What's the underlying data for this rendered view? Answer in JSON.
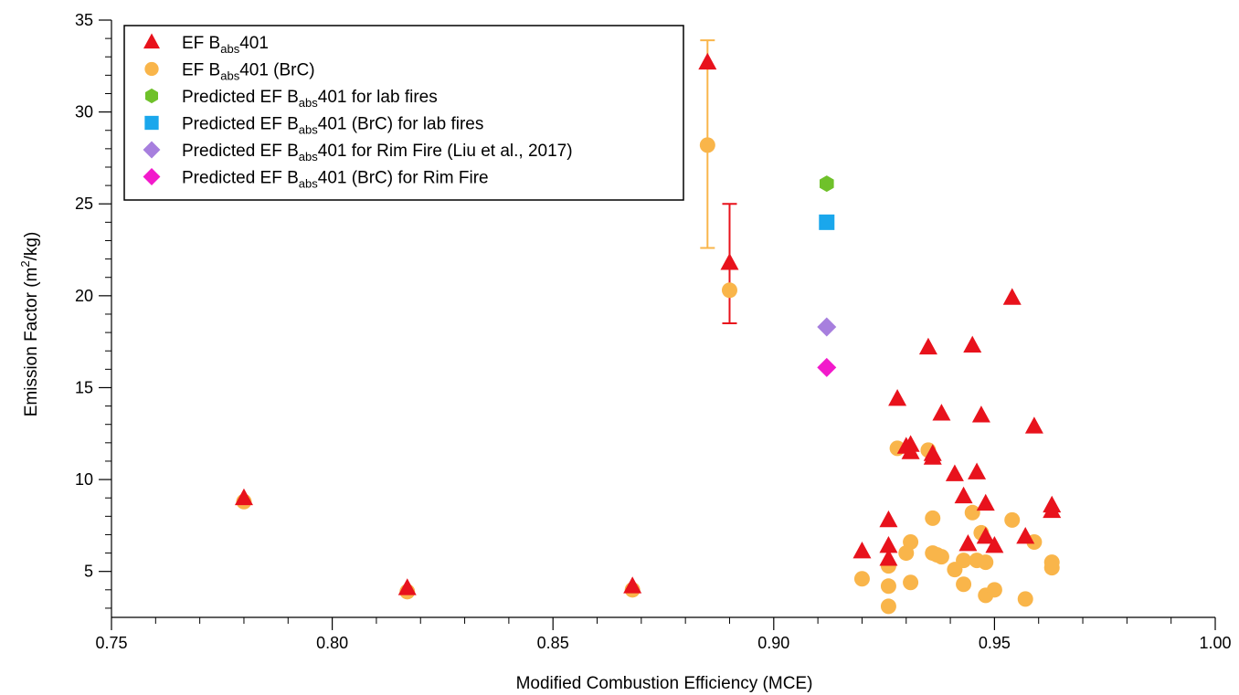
{
  "chart_data": {
    "type": "scatter",
    "xlabel": "Modified Combustion Efficiency (MCE)",
    "ylabel": "Emission Factor (m2/kg)",
    "ylabel_parts": {
      "pre": "Emission Factor (m",
      "sup": "2",
      "post": "/kg)"
    },
    "xlim": [
      0.75,
      1.0
    ],
    "ylim": [
      2.5,
      35
    ],
    "x_ticks": [
      "0.75",
      "0.80",
      "0.85",
      "0.90",
      "0.95",
      "1.00"
    ],
    "y_ticks": [
      "5",
      "10",
      "15",
      "20",
      "25",
      "30",
      "35"
    ],
    "grid": false,
    "legend_position": "top-left",
    "series": [
      {
        "name": "EF Babs401",
        "name_parts": {
          "pre": "EF B",
          "sub": "abs",
          "post": "401"
        },
        "marker": "triangle",
        "color": "#e8121c",
        "points": [
          [
            0.78,
            9.0
          ],
          [
            0.817,
            4.1
          ],
          [
            0.868,
            4.2
          ],
          [
            0.885,
            32.7
          ],
          [
            0.89,
            21.8
          ],
          [
            0.92,
            6.1
          ],
          [
            0.926,
            7.8
          ],
          [
            0.926,
            6.4
          ],
          [
            0.926,
            5.7
          ],
          [
            0.928,
            14.4
          ],
          [
            0.93,
            11.8
          ],
          [
            0.931,
            11.9
          ],
          [
            0.931,
            11.5
          ],
          [
            0.935,
            17.2
          ],
          [
            0.936,
            11.2
          ],
          [
            0.936,
            11.4
          ],
          [
            0.938,
            13.6
          ],
          [
            0.941,
            10.3
          ],
          [
            0.943,
            9.1
          ],
          [
            0.944,
            6.5
          ],
          [
            0.945,
            17.3
          ],
          [
            0.946,
            10.4
          ],
          [
            0.947,
            13.5
          ],
          [
            0.948,
            8.7
          ],
          [
            0.948,
            6.9
          ],
          [
            0.95,
            6.4
          ],
          [
            0.954,
            19.9
          ],
          [
            0.957,
            6.9
          ],
          [
            0.959,
            12.9
          ],
          [
            0.963,
            8.6
          ],
          [
            0.963,
            8.3
          ]
        ],
        "error_bars": [
          {
            "x": 0.89,
            "low": 18.5,
            "high": 25.0
          }
        ]
      },
      {
        "name": "EF Babs401 (BrC)",
        "name_parts": {
          "pre": "EF B",
          "sub": "abs",
          "post": "401 (BrC)"
        },
        "marker": "circle",
        "color": "#f9b54a",
        "points": [
          [
            0.78,
            8.8
          ],
          [
            0.817,
            3.9
          ],
          [
            0.868,
            4.0
          ],
          [
            0.885,
            28.2
          ],
          [
            0.89,
            20.3
          ],
          [
            0.92,
            4.6
          ],
          [
            0.926,
            3.1
          ],
          [
            0.926,
            4.2
          ],
          [
            0.926,
            5.3
          ],
          [
            0.928,
            11.7
          ],
          [
            0.93,
            6.0
          ],
          [
            0.931,
            6.6
          ],
          [
            0.931,
            4.4
          ],
          [
            0.935,
            11.6
          ],
          [
            0.936,
            7.9
          ],
          [
            0.936,
            6.0
          ],
          [
            0.937,
            5.9
          ],
          [
            0.938,
            5.8
          ],
          [
            0.941,
            5.1
          ],
          [
            0.943,
            4.3
          ],
          [
            0.943,
            5.6
          ],
          [
            0.945,
            8.2
          ],
          [
            0.946,
            5.6
          ],
          [
            0.947,
            7.1
          ],
          [
            0.948,
            5.5
          ],
          [
            0.948,
            3.7
          ],
          [
            0.95,
            4.0
          ],
          [
            0.954,
            7.8
          ],
          [
            0.957,
            3.5
          ],
          [
            0.959,
            6.6
          ],
          [
            0.963,
            5.5
          ],
          [
            0.963,
            5.2
          ]
        ],
        "error_bars": [
          {
            "x": 0.885,
            "low": 22.6,
            "high": 33.9
          }
        ]
      },
      {
        "name": "Predicted EF Babs401 for lab fires",
        "name_parts": {
          "pre": "Predicted EF B",
          "sub": "abs",
          "post": "401 for lab fires"
        },
        "marker": "hexagon",
        "color": "#6fc12a",
        "points": [
          [
            0.912,
            26.1
          ]
        ]
      },
      {
        "name": "Predicted EF Babs401 (BrC) for lab fires",
        "name_parts": {
          "pre": "Predicted EF B",
          "sub": "abs",
          "post": "401 (BrC) for lab fires"
        },
        "marker": "square",
        "color": "#1aa7ec",
        "points": [
          [
            0.912,
            24.0
          ]
        ]
      },
      {
        "name": "Predicted EF Babs401 for Rim Fire (Liu et al., 2017)",
        "name_parts": {
          "pre": "Predicted EF B",
          "sub": "abs",
          "post": "401 for Rim Fire (Liu et al., 2017)"
        },
        "marker": "diamond",
        "color": "#a77fde",
        "points": [
          [
            0.912,
            18.3
          ]
        ]
      },
      {
        "name": "Predicted EF Babs401 (BrC) for Rim Fire",
        "name_parts": {
          "pre": "Predicted EF B",
          "sub": "abs",
          "post": "401 (BrC) for Rim Fire"
        },
        "marker": "diamond",
        "color": "#f21acb",
        "points": [
          [
            0.912,
            16.1
          ]
        ]
      }
    ]
  }
}
